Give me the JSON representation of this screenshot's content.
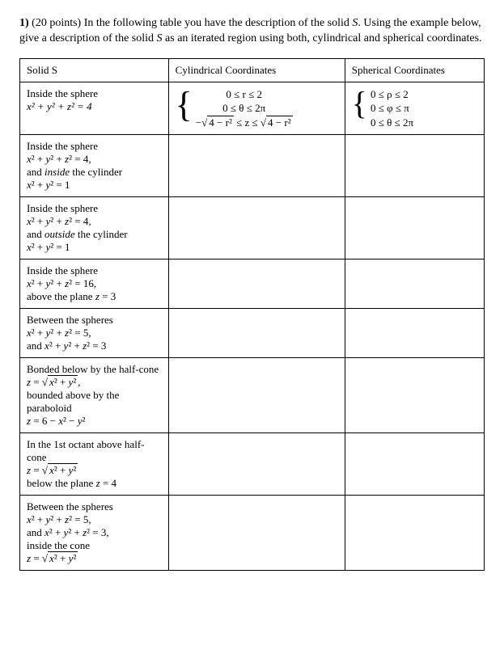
{
  "problem": {
    "number": "1)",
    "points": "(20 points)",
    "text_a": "In the following table you have the description of the solid ",
    "S": "S",
    "text_b": ". Using the example below, give a description of the solid ",
    "text_c": " as an iterated region using both, cylindrical and spherical coordinates."
  },
  "headers": {
    "col1": "Solid S",
    "col2": "Cylindrical Coordinates",
    "col3": "Spherical Coordinates"
  },
  "example": {
    "desc_line1": "Inside the sphere",
    "desc_eq": "x² + y² + z² = 4",
    "cyl": {
      "l1": "0 ≤ r ≤ 2",
      "l2": "0 ≤ θ ≤ 2π",
      "l3_a": "−",
      "l3_s1": "4 − r²",
      "l3_mid": " ≤ z ≤ ",
      "l3_s2": "4 − r²"
    },
    "sph": {
      "l1": "0 ≤ ρ ≤ 2",
      "l2": "0 ≤ φ ≤ π",
      "l3": "0 ≤ θ ≤ 2π"
    }
  },
  "rows": [
    {
      "lines": [
        "Inside the sphere",
        "<i>x</i>² + <i>y</i>² + <i>z</i>² = 4,",
        "and <i>inside</i> the cylinder",
        "<i>x</i>² + <i>y</i>² = 1"
      ]
    },
    {
      "lines": [
        "Inside the sphere",
        "<i>x</i>² + <i>y</i>² + <i>z</i>² = 4,",
        "and <i>outside</i> the cylinder",
        "<i>x</i>² + <i>y</i>² = 1"
      ]
    },
    {
      "lines": [
        "Inside the sphere",
        "<i>x</i>² + <i>y</i>² + <i>z</i>² = 16,",
        "above the plane <i>z</i> = 3"
      ]
    },
    {
      "lines": [
        "Between the spheres",
        "<i>x</i>² + <i>y</i>² + <i>z</i>² = 5,",
        "and <i>x</i>² + <i>y</i>² + <i>z</i>² = 3"
      ]
    },
    {
      "lines": [
        "Bonded below by the half-cone",
        "<i>z</i> = <span class=\"rad\"></span><span class=\"sqrt\"><i>x</i>² + <i>y</i>²</span>,",
        "bounded above by the paraboloid",
        "<i>z</i> = 6 − <i>x</i>² − <i>y</i>²"
      ]
    },
    {
      "lines": [
        "In the 1st octant above half-cone",
        "<i>z</i> = <span class=\"rad\"></span><span class=\"sqrt\"><i>x</i>² + <i>y</i>²</span>",
        "below the plane <i>z</i> = 4"
      ]
    },
    {
      "lines": [
        "Between the spheres",
        "<i>x</i>² + <i>y</i>² + <i>z</i>² = 5,",
        "and <i>x</i>² + <i>y</i>² + <i>z</i>² = 3,",
        "inside the cone",
        "<i>z</i> = <span class=\"rad\"></span><span class=\"sqrt\"><i>x</i>² + <i>y</i>²</span>"
      ]
    }
  ]
}
